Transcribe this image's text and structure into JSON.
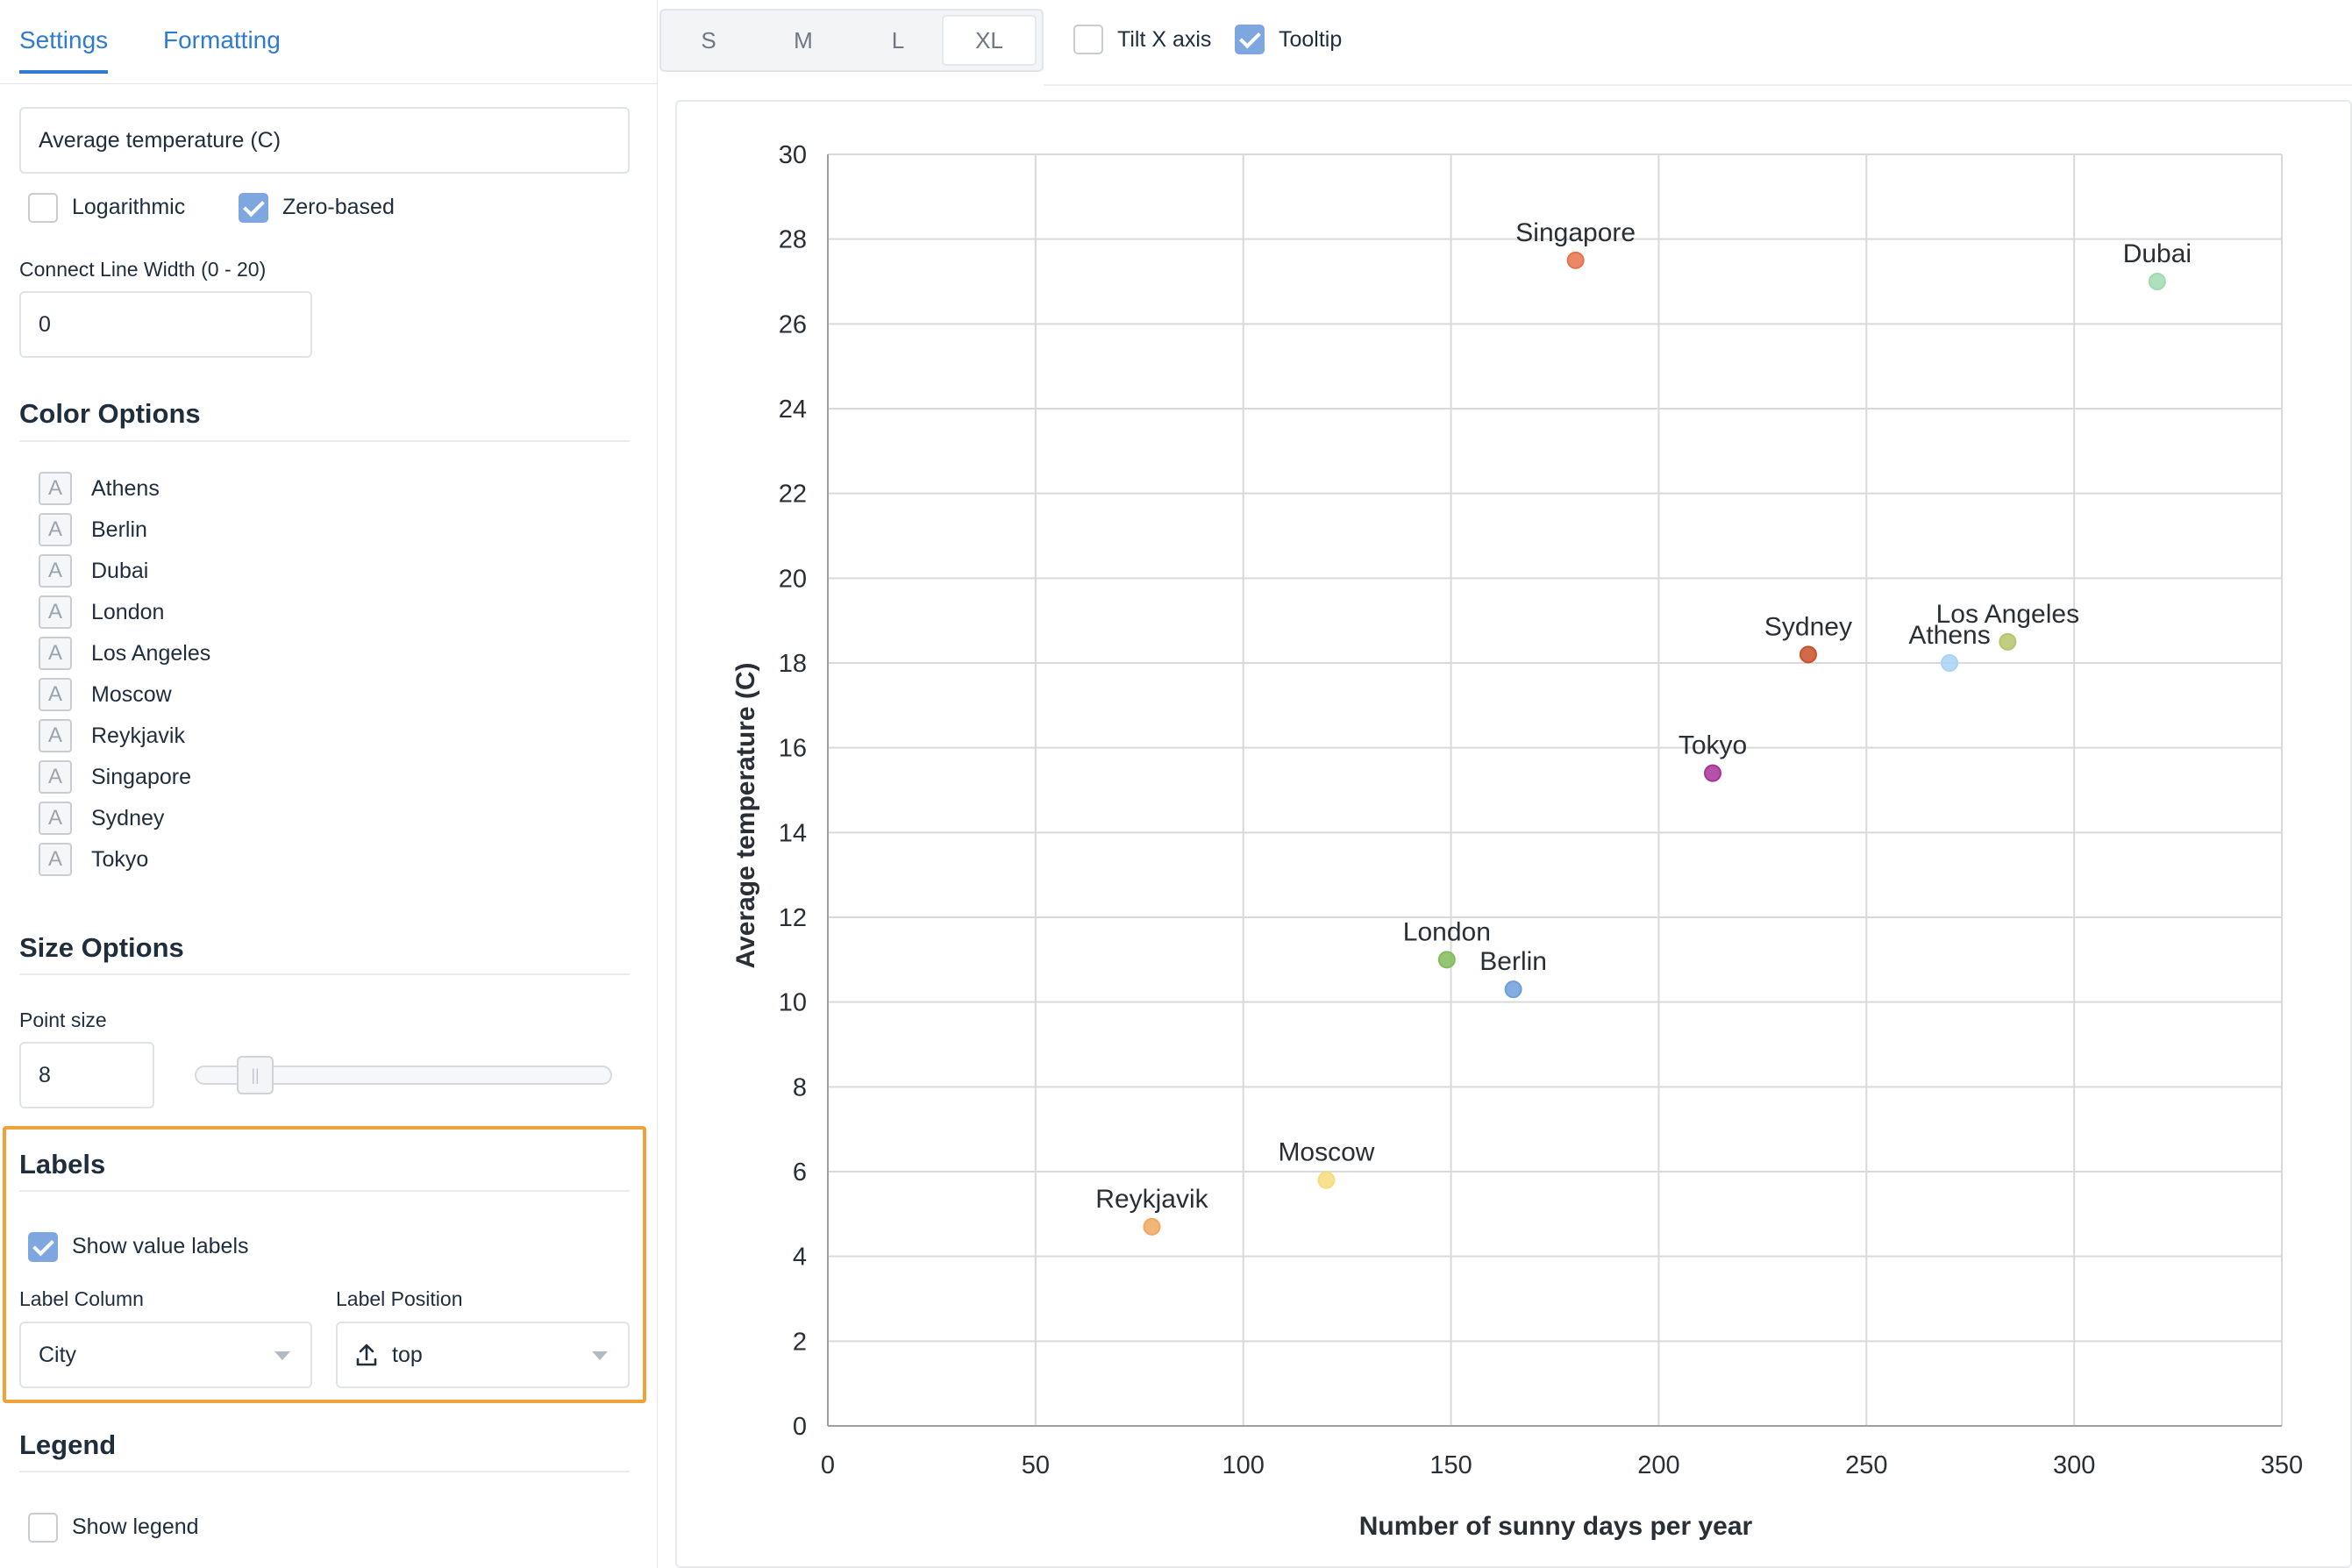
{
  "tabs": [
    {
      "label": "Settings",
      "active": true
    },
    {
      "label": "Formatting",
      "active": false
    }
  ],
  "axis_settings": {
    "title_value": "Average temperature (C)",
    "logarithmic_label": "Logarithmic",
    "logarithmic_checked": false,
    "zero_based_label": "Zero-based",
    "zero_based_checked": true,
    "connect_line_label": "Connect Line Width (0 - 20)",
    "connect_line_value": "0"
  },
  "color_options": {
    "title": "Color Options",
    "swatch_glyph": "A",
    "items": [
      "Athens",
      "Berlin",
      "Dubai",
      "London",
      "Los Angeles",
      "Moscow",
      "Reykjavik",
      "Singapore",
      "Sydney",
      "Tokyo"
    ]
  },
  "size_options": {
    "title": "Size Options",
    "point_size_label": "Point size",
    "point_size_value": "8",
    "point_size_fraction": 0.1
  },
  "labels_section": {
    "title": "Labels",
    "show_value_labels_label": "Show value labels",
    "show_value_labels_checked": true,
    "label_column_label": "Label Column",
    "label_column_value": "City",
    "label_position_label": "Label Position",
    "label_position_value": "top",
    "label_position_icon": "upload-icon"
  },
  "legend_section": {
    "title": "Legend",
    "show_legend_label": "Show legend",
    "show_legend_checked": false
  },
  "toolbar": {
    "sizes": [
      "S",
      "M",
      "L",
      "XL"
    ],
    "active_size": "XL",
    "tilt_x_label": "Tilt X axis",
    "tilt_x_checked": false,
    "tooltip_label": "Tooltip",
    "tooltip_checked": true
  },
  "colors": {
    "accent": "#2f7bd1",
    "checkbox": "#7ea6df",
    "highlight": "#f0a23a",
    "grid": "#d9d9d9"
  },
  "chart_data": {
    "type": "scatter",
    "xlabel": "Number of sunny days per year",
    "ylabel": "Average temperature (C)",
    "xlim": [
      0,
      350
    ],
    "ylim": [
      0,
      30
    ],
    "xticks": [
      0,
      50,
      100,
      150,
      200,
      250,
      300,
      350
    ],
    "yticks": [
      0,
      2,
      4,
      6,
      8,
      10,
      12,
      14,
      16,
      18,
      20,
      22,
      24,
      26,
      28,
      30
    ],
    "grid": true,
    "points": [
      {
        "city": "Singapore",
        "x": 180,
        "y": 27.5,
        "color": "#e6744a"
      },
      {
        "city": "Dubai",
        "x": 320,
        "y": 27.0,
        "color": "#9fdbb0"
      },
      {
        "city": "Sydney",
        "x": 236,
        "y": 18.2,
        "color": "#c9502c"
      },
      {
        "city": "Los Angeles",
        "x": 284,
        "y": 18.5,
        "color": "#b6c46a"
      },
      {
        "city": "Athens",
        "x": 270,
        "y": 18.0,
        "color": "#a9d3f5"
      },
      {
        "city": "Tokyo",
        "x": 213,
        "y": 15.4,
        "color": "#a8329a"
      },
      {
        "city": "London",
        "x": 149,
        "y": 11.0,
        "color": "#84bb5c"
      },
      {
        "city": "Berlin",
        "x": 165,
        "y": 10.3,
        "color": "#6d9fd8"
      },
      {
        "city": "Moscow",
        "x": 120,
        "y": 5.8,
        "color": "#f6dc7c"
      },
      {
        "city": "Reykjavik",
        "x": 78,
        "y": 4.7,
        "color": "#eda862"
      }
    ]
  }
}
